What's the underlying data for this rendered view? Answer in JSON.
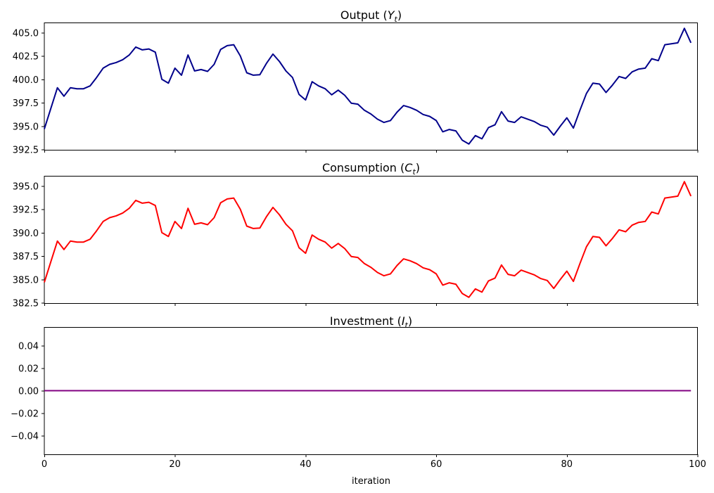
{
  "figure": {
    "background": "#ffffff",
    "axis_color": "#000000",
    "text_color": "#000000",
    "xlabel": "iteration",
    "xlim": [
      0,
      100
    ],
    "xtick_vals": [
      0,
      20,
      40,
      60,
      80,
      100
    ],
    "xtick_labels": [
      "0",
      "20",
      "40",
      "60",
      "80",
      "100"
    ],
    "grid": false,
    "legend": "none"
  },
  "chart_data": [
    {
      "type": "line",
      "title": "Output (Y_t)",
      "title_prefix": "Output (",
      "title_var": "Y",
      "title_sub": "t",
      "title_suffix": ")",
      "line_color": "#00008B",
      "x_start": 0,
      "x_step": 1,
      "ylim": [
        392.48,
        406.07
      ],
      "ytick_vals": [
        392.5,
        395.0,
        397.5,
        400.0,
        402.5,
        405.0
      ],
      "ytick_labels": [
        "392.5",
        "395.0",
        "397.5",
        "400.0",
        "402.5",
        "405.0"
      ],
      "values": [
        394.7,
        396.9,
        399.1,
        398.2,
        399.1,
        399.0,
        399.0,
        399.3,
        400.2,
        401.2,
        401.6,
        401.8,
        402.1,
        402.6,
        403.45,
        403.15,
        403.25,
        402.9,
        400.0,
        399.6,
        401.2,
        400.45,
        402.6,
        400.9,
        401.05,
        400.85,
        401.6,
        403.2,
        403.6,
        403.7,
        402.5,
        400.7,
        400.45,
        400.5,
        401.7,
        402.7,
        401.9,
        400.9,
        400.2,
        398.4,
        397.8,
        399.75,
        399.3,
        399.0,
        398.35,
        398.85,
        398.3,
        397.45,
        397.35,
        396.7,
        396.3,
        395.75,
        395.4,
        395.6,
        396.5,
        397.2,
        397.0,
        396.7,
        396.25,
        396.05,
        395.6,
        394.4,
        394.65,
        394.5,
        393.5,
        393.1,
        394.0,
        393.65,
        394.85,
        395.15,
        396.55,
        395.55,
        395.4,
        396.0,
        395.75,
        395.5,
        395.1,
        394.9,
        394.05,
        395.0,
        395.9,
        394.8,
        396.7,
        398.5,
        399.6,
        399.5,
        398.6,
        399.4,
        400.3,
        400.1,
        400.8,
        401.1,
        401.2,
        402.2,
        402.0,
        403.7,
        403.8,
        403.9,
        405.45,
        403.9
      ]
    },
    {
      "type": "line",
      "title": "Consumption (C_t)",
      "title_prefix": "Consumption (",
      "title_var": "C",
      "title_sub": "t",
      "title_suffix": ")",
      "line_color": "#FF0000",
      "x_start": 0,
      "x_step": 1,
      "ylim": [
        382.48,
        396.07
      ],
      "ytick_vals": [
        382.5,
        385.0,
        387.5,
        390.0,
        392.5,
        395.0
      ],
      "ytick_labels": [
        "382.5",
        "385.0",
        "387.5",
        "390.0",
        "392.5",
        "395.0"
      ],
      "values": [
        384.7,
        386.9,
        389.1,
        388.2,
        389.1,
        389.0,
        389.0,
        389.3,
        390.2,
        391.2,
        391.6,
        391.8,
        392.1,
        392.6,
        393.45,
        393.15,
        393.25,
        392.9,
        390.0,
        389.6,
        391.2,
        390.45,
        392.6,
        390.9,
        391.05,
        390.85,
        391.6,
        393.2,
        393.6,
        393.7,
        392.5,
        390.7,
        390.45,
        390.5,
        391.7,
        392.7,
        391.9,
        390.9,
        390.2,
        388.4,
        387.8,
        389.75,
        389.3,
        389.0,
        388.35,
        388.85,
        388.3,
        387.45,
        387.35,
        386.7,
        386.3,
        385.75,
        385.4,
        385.6,
        386.5,
        387.2,
        387.0,
        386.7,
        386.25,
        386.05,
        385.6,
        384.4,
        384.65,
        384.5,
        383.5,
        383.1,
        384.0,
        383.65,
        384.85,
        385.15,
        386.55,
        385.55,
        385.4,
        386.0,
        385.75,
        385.5,
        385.1,
        384.9,
        384.05,
        385.0,
        385.9,
        384.8,
        386.7,
        388.5,
        389.6,
        389.5,
        388.6,
        389.4,
        390.3,
        390.1,
        390.8,
        391.1,
        391.2,
        392.2,
        392.0,
        393.7,
        393.8,
        393.9,
        395.45,
        393.9
      ]
    },
    {
      "type": "line",
      "title": "Investment (I_t)",
      "title_prefix": "Investment (",
      "title_var": "I",
      "title_sub": "t",
      "title_suffix": ")",
      "line_color": "#800080",
      "x": [
        0,
        99
      ],
      "ylim": [
        -0.0565,
        0.0565
      ],
      "ytick_vals": [
        -0.04,
        -0.02,
        0.0,
        0.02,
        0.04
      ],
      "ytick_labels": [
        "−0.04",
        "−0.02",
        "0.00",
        "0.02",
        "0.04"
      ],
      "values": [
        0.0,
        0.0
      ],
      "note": "constant zero over iterations 0-99"
    }
  ]
}
